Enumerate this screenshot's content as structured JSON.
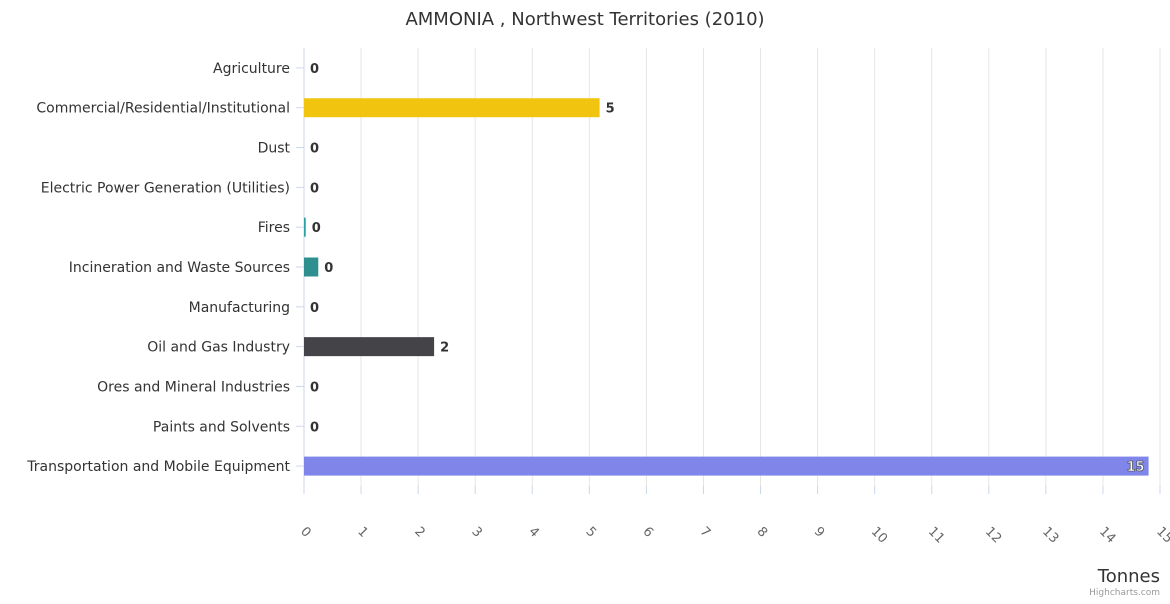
{
  "chart_data": {
    "type": "bar",
    "orientation": "horizontal",
    "title": "AMMONIA , Northwest Territories (2010)",
    "xlabel": "Tonnes",
    "credits": "Highcharts.com",
    "xlim": [
      0,
      15
    ],
    "ticks": [
      "0",
      "1",
      "2",
      "3",
      "4",
      "5",
      "6",
      "7",
      "8",
      "9",
      "10",
      "11",
      "12",
      "13",
      "14",
      "15"
    ],
    "grid": true,
    "categories": [
      "Agriculture",
      "Commercial/Residential/Institutional",
      "Dust",
      "Electric Power Generation (Utilities)",
      "Fires",
      "Incineration and Waste Sources",
      "Manufacturing",
      "Oil and Gas Industry",
      "Ores and Mineral Industries",
      "Paints and Solvents",
      "Transportation and Mobile Equipment"
    ],
    "values": [
      0,
      5.18,
      0,
      0,
      0.03,
      0.25,
      0,
      2.28,
      0,
      0,
      14.8
    ],
    "data_labels": [
      "0",
      "5",
      "0",
      "0",
      "0",
      "0",
      "0",
      "2",
      "0",
      "0",
      "15"
    ],
    "colors": [
      "#7cb5ec",
      "#f1c40f",
      "#90ed7d",
      "#f7a35c",
      "#2b9ea6",
      "#2f8f8f",
      "#8085e9",
      "#434348",
      "#e4d354",
      "#91e8e1",
      "#8085e9"
    ]
  }
}
